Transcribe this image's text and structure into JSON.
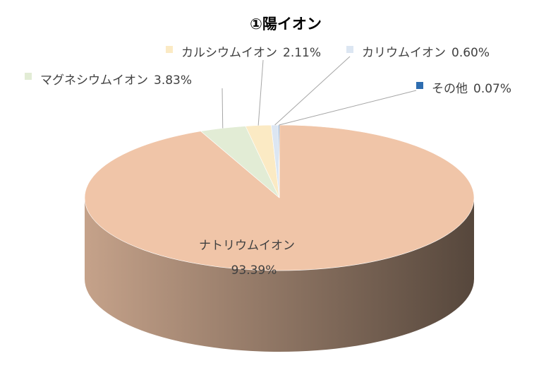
{
  "chart_data": {
    "type": "pie3d",
    "title": "①陽イオン",
    "categories": [
      "ナトリウムイオン",
      "マグネシウムイオン",
      "カルシウムイオン",
      "カリウムイオン",
      "その他"
    ],
    "values": [
      93.39,
      3.83,
      2.11,
      0.6,
      0.07
    ],
    "value_labels": [
      "93.39%",
      "3.83%",
      "2.11%",
      "0.60%",
      "0.07%"
    ],
    "colors": [
      "#f0c5a8",
      "#e2ecd5",
      "#fbeac4",
      "#dce6f2",
      "#2e6db0"
    ]
  }
}
